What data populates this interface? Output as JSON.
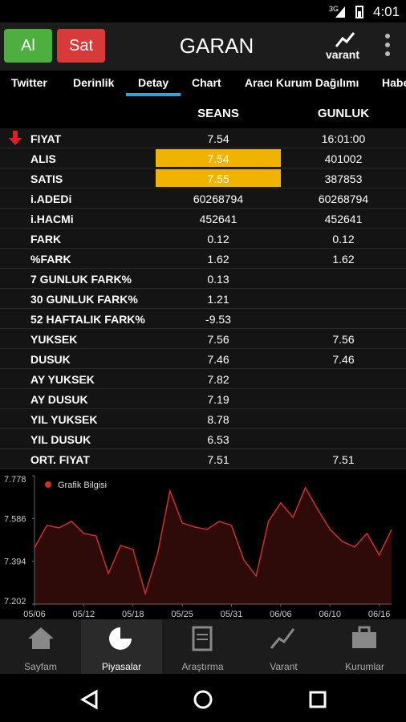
{
  "status_bar": {
    "network": "3G",
    "time": "4:01"
  },
  "header": {
    "buy": "Al",
    "sell": "Sat",
    "title": "GARAN",
    "brand": "varant"
  },
  "tabs": [
    "Twitter",
    "Derinlik",
    "Detay",
    "Chart",
    "Aracı Kurum Dağılımı",
    "Habe"
  ],
  "selected_tab": 2,
  "table": {
    "columns": [
      "SEANS",
      "GUNLUK"
    ],
    "rows": [
      {
        "label": "FIYAT",
        "seans": "7.54",
        "gunluk": "16:01:00"
      },
      {
        "label": "ALIS",
        "seans": "7.54",
        "gunluk": "401002"
      },
      {
        "label": "SATIS",
        "seans": "7.55",
        "gunluk": "387853"
      },
      {
        "label": "i.ADEDi",
        "seans": "60268794",
        "gunluk": "60268794"
      },
      {
        "label": "i.HACMi",
        "seans": "452641",
        "gunluk": "452641"
      },
      {
        "label": "FARK",
        "seans": "0.12",
        "gunluk": "0.12"
      },
      {
        "label": "%FARK",
        "seans": "1.62",
        "gunluk": "1.62"
      },
      {
        "label": "7 GUNLUK FARK%",
        "seans": "0.13"
      },
      {
        "label": "30 GUNLUK FARK%",
        "seans": "1.21"
      },
      {
        "label": "52 HAFTALIK FARK%",
        "seans": "-9.53"
      },
      {
        "label": "YUKSEK",
        "seans": "7.56",
        "gunluk": "7.56"
      },
      {
        "label": "DUSUK",
        "seans": "7.46",
        "gunluk": "7.46"
      },
      {
        "label": "AY YUKSEK",
        "seans": "7.82"
      },
      {
        "label": "AY DUSUK",
        "seans": "7.19"
      },
      {
        "label": "YIL YUKSEK",
        "seans": "8.78"
      },
      {
        "label": "YIL DUSUK",
        "seans": "6.53"
      },
      {
        "label": "ORT. FIYAT",
        "seans": "7.51",
        "gunluk": "7.51"
      }
    ],
    "highlighted_rows": [
      1,
      2
    ]
  },
  "chart_data": {
    "type": "line",
    "categories": [
      "05/06",
      null,
      null,
      null,
      "05/12",
      null,
      null,
      null,
      "05/18",
      null,
      null,
      null,
      "05/25",
      null,
      null,
      null,
      "05/31",
      null,
      null,
      null,
      "06/06",
      null,
      null,
      null,
      "06/10",
      null,
      null,
      null,
      "06/16",
      null
    ],
    "series": [
      {
        "name": "Grafik Bilgisi",
        "color": "#d0302a",
        "values": [
          7.454,
          7.555,
          7.544,
          7.573,
          7.519,
          7.508,
          7.339,
          7.465,
          7.447,
          7.249,
          7.429,
          7.71,
          7.566,
          7.548,
          7.537,
          7.573,
          7.555,
          7.4,
          7.328,
          7.573,
          7.656,
          7.591,
          7.724,
          7.627,
          7.537,
          7.483,
          7.458,
          7.519,
          7.422,
          7.537
        ]
      }
    ],
    "ylim": [
      7.202,
      7.778
    ],
    "yticks": [
      7.202,
      7.394,
      7.586,
      7.778
    ]
  },
  "bottom_nav": [
    "Sayfam",
    "Piyasalar",
    "Araştırma",
    "Varant",
    "Kurumlar"
  ],
  "selected_nav": 1
}
